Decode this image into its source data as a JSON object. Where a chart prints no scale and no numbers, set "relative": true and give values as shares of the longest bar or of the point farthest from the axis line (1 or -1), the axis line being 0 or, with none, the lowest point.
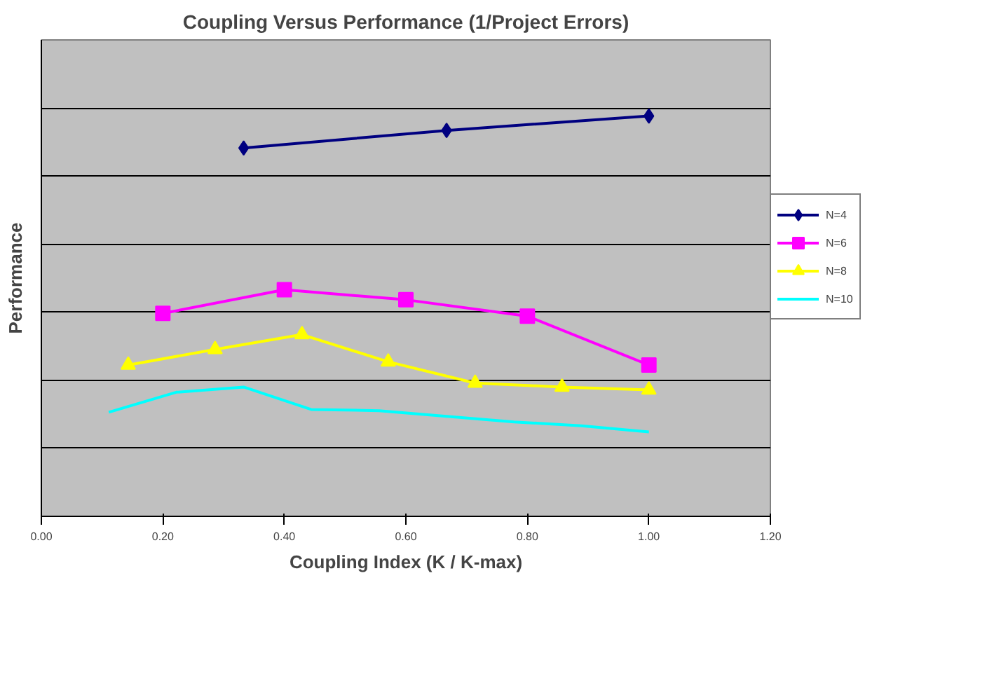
{
  "chart_data": {
    "type": "line",
    "title": "Coupling Versus Performance (1/Project Errors)",
    "xlabel": "Coupling Index (K / K-max)",
    "ylabel": "Performance",
    "relative": true,
    "grid": "y",
    "legend": "right",
    "xlim": [
      0,
      1.2
    ],
    "xticks": [
      {
        "value": 0,
        "label": "0.00"
      },
      {
        "value": 0.2,
        "label": "0.20"
      },
      {
        "value": 0.4,
        "label": "0.40"
      },
      {
        "value": 0.6,
        "label": "0.60"
      },
      {
        "value": 0.8,
        "label": "0.80"
      },
      {
        "value": 1,
        "label": "1.00"
      },
      {
        "value": 1.2,
        "label": "1.20"
      }
    ],
    "series": [
      {
        "name": "N=4",
        "color": "#000080",
        "marker": "diamond",
        "x": [
          0.333,
          0.667,
          1.0
        ],
        "values": [
          0.92,
          0.964,
          1.0
        ]
      },
      {
        "name": "N=6",
        "color": "#ff00ff",
        "marker": "square",
        "x": [
          0.2,
          0.4,
          0.6,
          0.8,
          1.0
        ],
        "values": [
          0.507,
          0.566,
          0.541,
          0.5,
          0.378
        ]
      },
      {
        "name": "N=8",
        "color": "#ffff00",
        "marker": "triangle",
        "x": [
          0.143,
          0.286,
          0.429,
          0.571,
          0.714,
          0.857,
          1.0
        ],
        "values": [
          0.378,
          0.417,
          0.454,
          0.386,
          0.333,
          0.323,
          0.316
        ]
      },
      {
        "name": "N=10",
        "color": "#00ffff",
        "marker": "none",
        "x": [
          0.111,
          0.222,
          0.333,
          0.444,
          0.556,
          0.667,
          0.778,
          0.889,
          1.0
        ],
        "values": [
          0.26,
          0.31,
          0.323,
          0.267,
          0.264,
          0.25,
          0.236,
          0.226,
          0.211
        ]
      }
    ]
  }
}
